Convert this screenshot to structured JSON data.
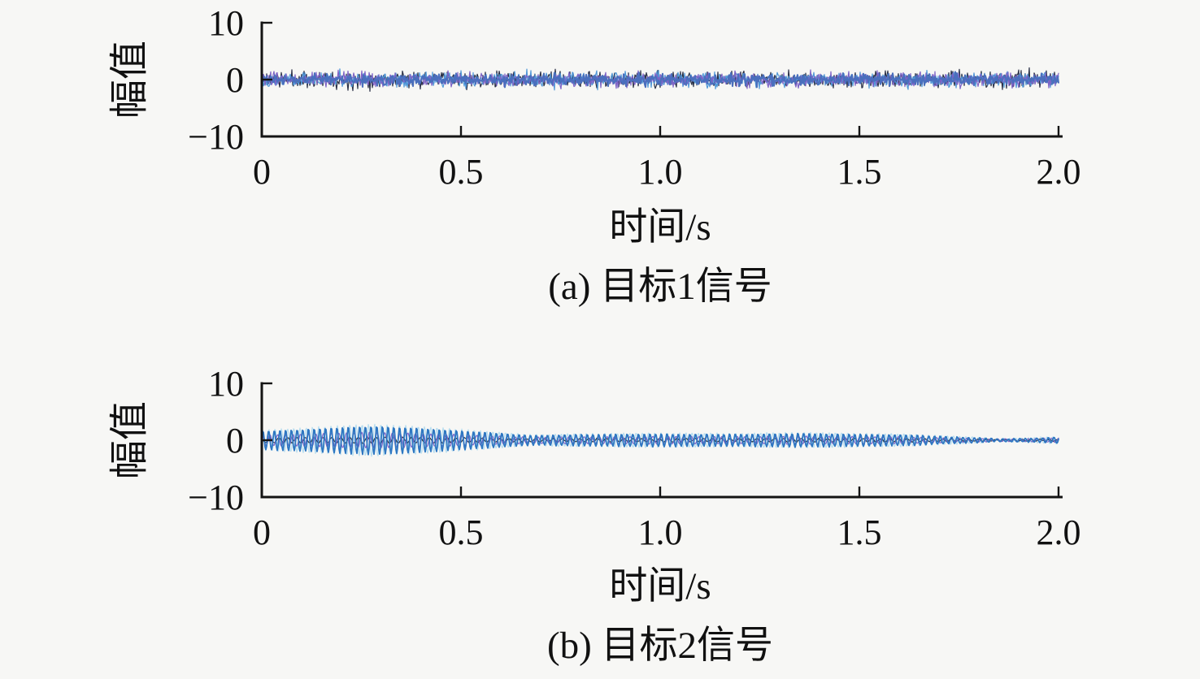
{
  "colors": {
    "background": "#f7f7f5",
    "axis": "#141414",
    "text": "#111111"
  },
  "chart_data": [
    {
      "type": "line",
      "title": "(a) 目标1信号",
      "xlabel": "时间/s",
      "ylabel": "幅值",
      "xlim": [
        0,
        2
      ],
      "ylim": [
        -10,
        10
      ],
      "xticks": [
        0,
        0.5,
        1.0,
        1.5,
        2.0
      ],
      "xtick_labels": [
        "0",
        "0.5",
        "1.0",
        "1.5",
        "2.0"
      ],
      "yticks": [
        10,
        0,
        -10
      ],
      "ytick_labels": [
        "10",
        "0",
        "−10"
      ],
      "grid": false,
      "legend": "none",
      "description": "Dense zero-mean noise band of overlaid traces, solid blue core about ±1, fringe peaks about ±2.5",
      "series": [
        {
          "name": "noise-dark",
          "kind": "noise",
          "color": "#2a3046",
          "amplitude": 2.4,
          "seed": 11,
          "width": 1.2
        },
        {
          "name": "noise-lightblue",
          "kind": "noise",
          "color": "#4f97d8",
          "amplitude": 2.2,
          "seed": 22,
          "width": 1.2
        },
        {
          "name": "noise-purple",
          "kind": "noise",
          "color": "#7e63c6",
          "amplitude": 2.1,
          "seed": 33,
          "width": 1.2
        },
        {
          "name": "noise-blue",
          "kind": "noise",
          "color": "#4a6fbd",
          "amplitude": 1.6,
          "seed": 44,
          "width": 2.0
        }
      ]
    },
    {
      "type": "line",
      "title": "(b) 目标2信号",
      "xlabel": "时间/s",
      "ylabel": "幅值",
      "xlim": [
        0,
        2
      ],
      "ylim": [
        -10,
        10
      ],
      "xticks": [
        0,
        0.5,
        1.0,
        1.5,
        2.0
      ],
      "xtick_labels": [
        "0",
        "0.5",
        "1.0",
        "1.5",
        "2.0"
      ],
      "yticks": [
        10,
        0,
        -10
      ],
      "ytick_labels": [
        "10",
        "0",
        "−10"
      ],
      "grid": false,
      "legend": "none",
      "description": "Amplitude-modulated dense oscillation: envelope peaks ~±2.5 near t=0.27 s, pinches near t=0.68 s and t=1.85 s where thin dark/purple traces show through",
      "envelope": {
        "t": [
          0,
          0.1,
          0.2,
          0.28,
          0.38,
          0.5,
          0.6,
          0.68,
          0.8,
          1.0,
          1.2,
          1.35,
          1.5,
          1.62,
          1.75,
          1.85,
          1.92,
          2.0
        ],
        "amplitude": [
          1.6,
          1.9,
          2.3,
          2.5,
          2.2,
          1.7,
          1.2,
          0.85,
          1.0,
          1.1,
          1.05,
          1.2,
          1.05,
          0.95,
          0.55,
          0.22,
          0.3,
          0.55
        ]
      },
      "series": [
        {
          "name": "am-lightcyan",
          "kind": "am",
          "color": "#b6ddf0",
          "carrier_hz": 64,
          "env_scale": 1.12,
          "base": 0.05,
          "noise": 0.05,
          "phase": 0.7,
          "seed": 50,
          "width": 1.2
        },
        {
          "name": "am-dark",
          "kind": "am",
          "color": "#2a2f3e",
          "carrier_hz": 45,
          "env_scale": 0.18,
          "base": 0.1,
          "noise": 0.08,
          "phase": 2.1,
          "seed": 55,
          "width": 1.2
        },
        {
          "name": "am-purple",
          "kind": "am",
          "color": "#7e63c6",
          "carrier_hz": 52,
          "env_scale": 0.5,
          "base": 0.12,
          "noise": 0.05,
          "phase": 1.2,
          "seed": 66,
          "width": 1.2
        },
        {
          "name": "am-blue",
          "kind": "am",
          "color": "#2e77c2",
          "carrier_hz": 70,
          "env_scale": 1.0,
          "base": 0.0,
          "noise": 0.06,
          "phase": 0.3,
          "seed": 77,
          "width": 1.8
        }
      ]
    }
  ]
}
